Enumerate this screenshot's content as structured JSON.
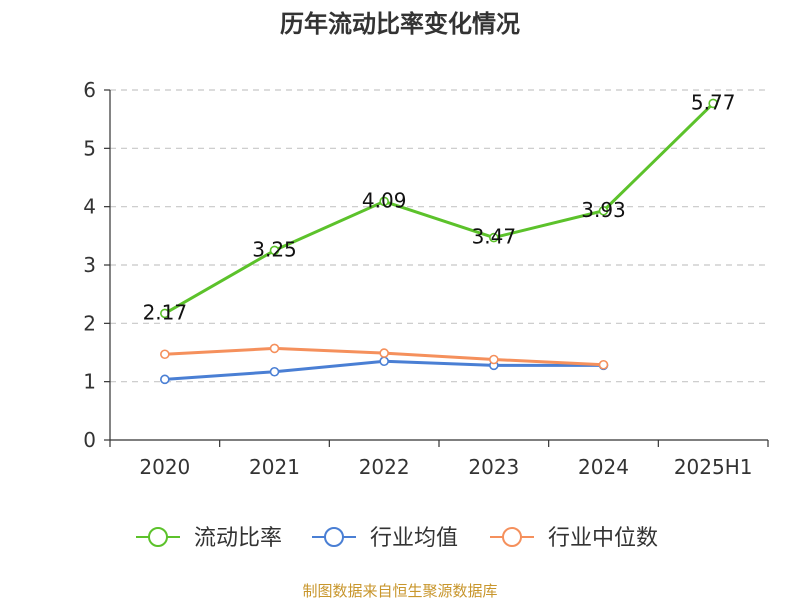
{
  "chart_data": {
    "type": "line",
    "title": "历年流动比率变化情况",
    "categories": [
      "2020",
      "2021",
      "2022",
      "2023",
      "2024",
      "2025H1"
    ],
    "ylim": [
      0,
      6
    ],
    "yticks": [
      0,
      1,
      2,
      3,
      4,
      5,
      6
    ],
    "grid": true,
    "legend_position": "bottom",
    "series": [
      {
        "name": "流动比率",
        "color": "#5cc22b",
        "values": [
          2.17,
          3.25,
          4.09,
          3.47,
          3.93,
          5.77
        ],
        "labels": [
          "2.17",
          "3.25",
          "4.09",
          "3.47",
          "3.93",
          "5.77"
        ]
      },
      {
        "name": "行业均值",
        "color": "#4a7fd4",
        "values": [
          1.04,
          1.17,
          1.35,
          1.28,
          1.28,
          null
        ]
      },
      {
        "name": "行业中位数",
        "color": "#f5905c",
        "values": [
          1.47,
          1.57,
          1.49,
          1.38,
          1.29,
          null
        ]
      }
    ]
  },
  "source_note": "制图数据来自恒生聚源数据库"
}
